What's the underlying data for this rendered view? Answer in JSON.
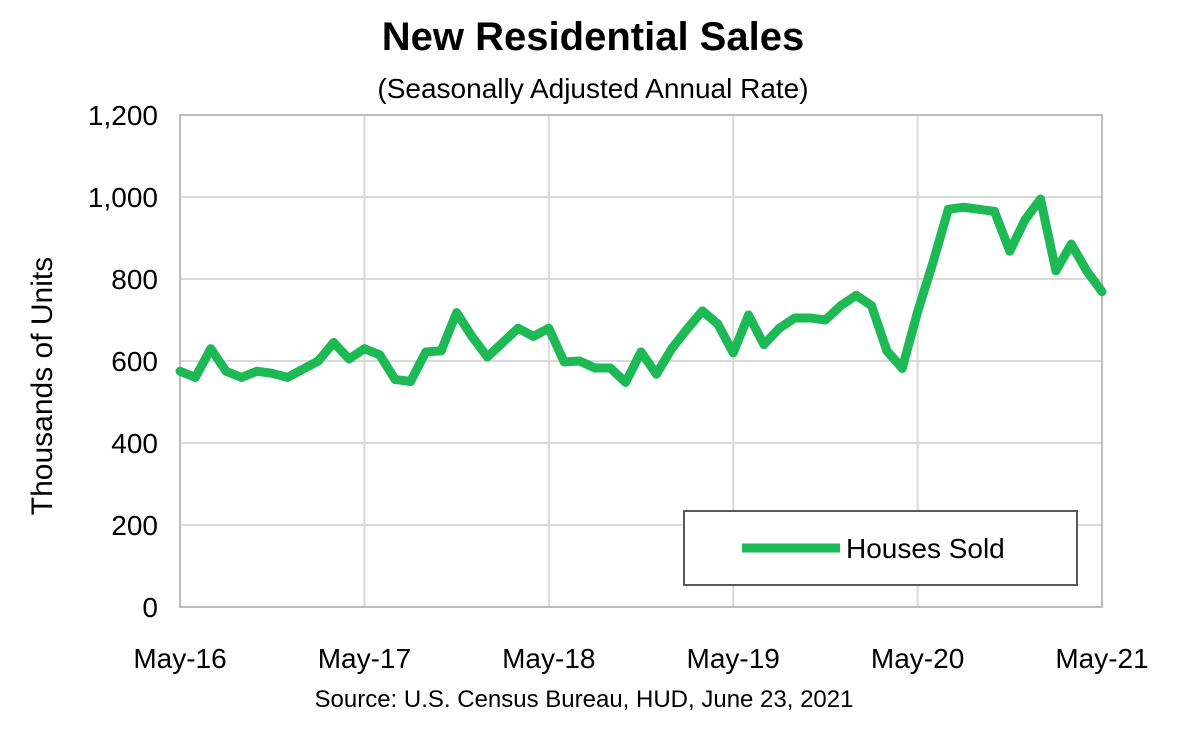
{
  "chart_data": {
    "type": "line",
    "title": "New Residential Sales",
    "subtitle": "(Seasonally Adjusted Annual Rate)",
    "ylabel": "Thousands of Units",
    "xlabel": "",
    "source": "Source:  U.S. Census Bureau, HUD, June 23, 2021",
    "ylim": [
      0,
      1200
    ],
    "yticks": [
      "0",
      "200",
      "400",
      "600",
      "800",
      "1,000",
      "1,200"
    ],
    "ytick_values": [
      0,
      200,
      400,
      600,
      800,
      1000,
      1200
    ],
    "xticks": [
      "May-16",
      "May-17",
      "May-18",
      "May-19",
      "May-20",
      "May-21"
    ],
    "xtick_index": [
      0,
      12,
      24,
      36,
      48,
      60
    ],
    "grid": true,
    "legend": {
      "position": "bottom-right",
      "entries": [
        "Houses Sold"
      ]
    },
    "line_color": "#1db954",
    "series": [
      {
        "name": "Houses Sold",
        "values": [
          575,
          560,
          630,
          575,
          560,
          575,
          570,
          560,
          580,
          600,
          645,
          605,
          630,
          615,
          555,
          550,
          622,
          625,
          718,
          660,
          610,
          645,
          680,
          660,
          680,
          598,
          600,
          583,
          583,
          548,
          622,
          568,
          630,
          678,
          722,
          690,
          620,
          712,
          640,
          680,
          705,
          705,
          700,
          735,
          760,
          735,
          625,
          582,
          720,
          840,
          970,
          975,
          970,
          965,
          868,
          945,
          995,
          820,
          885,
          820,
          769
        ]
      }
    ]
  }
}
